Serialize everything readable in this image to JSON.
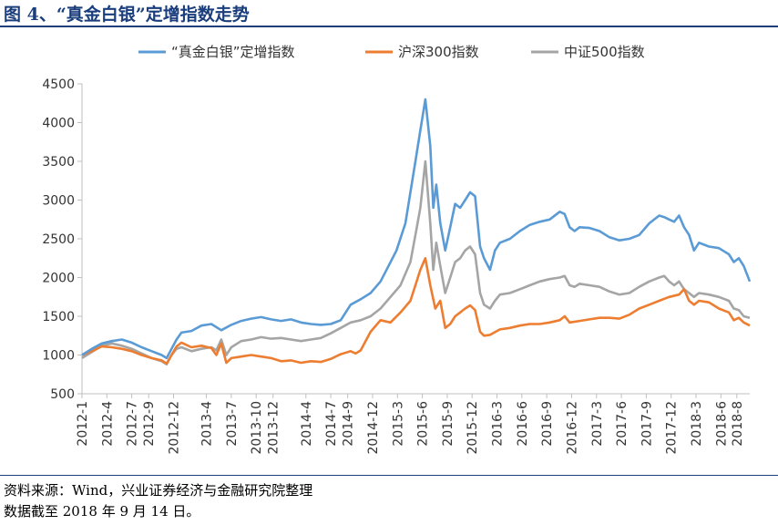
{
  "figure_title": "图 4、“真金白银”定增指数走势",
  "source_line": "资料来源：Wind，兴业证券经济与金融研究院整理",
  "date_line": "数据截至 2018 年 9 月 14 日。",
  "chart_data": {
    "type": "line",
    "title": "",
    "xlabel": "",
    "ylabel": "",
    "ylim": [
      500,
      4500
    ],
    "yticks": [
      500,
      1000,
      1500,
      2000,
      2500,
      3000,
      3500,
      4000,
      4500
    ],
    "grid": false,
    "legend_position": "top",
    "x_range": [
      2012.0,
      2018.71
    ],
    "x_tick_labels": [
      "2012-1",
      "2012-4",
      "2012-7",
      "2012-9",
      "2012-12",
      "2013-4",
      "2013-7",
      "2013-10",
      "2013-12",
      "2014-4",
      "2014-7",
      "2014-9",
      "2014-12",
      "2015-3",
      "2015-6",
      "2015-9",
      "2015-12",
      "2016-3",
      "2016-6",
      "2016-9",
      "2016-12",
      "2017-3",
      "2017-6",
      "2017-9",
      "2017-12",
      "2018-3",
      "2018-6",
      "2018-8"
    ],
    "x_tick_values": [
      2012.0,
      2012.25,
      2012.5,
      2012.67,
      2012.92,
      2013.25,
      2013.5,
      2013.75,
      2013.92,
      2014.25,
      2014.5,
      2014.67,
      2014.92,
      2015.17,
      2015.42,
      2015.67,
      2015.92,
      2016.17,
      2016.42,
      2016.67,
      2016.92,
      2017.17,
      2017.42,
      2017.67,
      2017.92,
      2018.17,
      2018.42,
      2018.58
    ],
    "series": [
      {
        "name": "“真金白银”定增指数",
        "color": "#5b9bd5",
        "points": [
          [
            2012.0,
            1000
          ],
          [
            2012.1,
            1080
          ],
          [
            2012.2,
            1150
          ],
          [
            2012.3,
            1180
          ],
          [
            2012.4,
            1200
          ],
          [
            2012.5,
            1160
          ],
          [
            2012.6,
            1100
          ],
          [
            2012.7,
            1050
          ],
          [
            2012.8,
            1000
          ],
          [
            2012.85,
            960
          ],
          [
            2012.9,
            1080
          ],
          [
            2012.95,
            1200
          ],
          [
            2013.0,
            1290
          ],
          [
            2013.1,
            1310
          ],
          [
            2013.2,
            1380
          ],
          [
            2013.3,
            1400
          ],
          [
            2013.4,
            1320
          ],
          [
            2013.5,
            1390
          ],
          [
            2013.6,
            1440
          ],
          [
            2013.7,
            1470
          ],
          [
            2013.8,
            1490
          ],
          [
            2013.9,
            1460
          ],
          [
            2014.0,
            1440
          ],
          [
            2014.1,
            1460
          ],
          [
            2014.2,
            1420
          ],
          [
            2014.3,
            1400
          ],
          [
            2014.4,
            1390
          ],
          [
            2014.5,
            1400
          ],
          [
            2014.6,
            1450
          ],
          [
            2014.7,
            1650
          ],
          [
            2014.8,
            1720
          ],
          [
            2014.9,
            1800
          ],
          [
            2015.0,
            1950
          ],
          [
            2015.08,
            2150
          ],
          [
            2015.16,
            2350
          ],
          [
            2015.25,
            2700
          ],
          [
            2015.3,
            3100
          ],
          [
            2015.35,
            3500
          ],
          [
            2015.4,
            3900
          ],
          [
            2015.45,
            4300
          ],
          [
            2015.5,
            3700
          ],
          [
            2015.53,
            2900
          ],
          [
            2015.56,
            3200
          ],
          [
            2015.6,
            2700
          ],
          [
            2015.65,
            2350
          ],
          [
            2015.7,
            2650
          ],
          [
            2015.75,
            2950
          ],
          [
            2015.8,
            2900
          ],
          [
            2015.85,
            3000
          ],
          [
            2015.9,
            3100
          ],
          [
            2015.95,
            3050
          ],
          [
            2016.0,
            2400
          ],
          [
            2016.04,
            2250
          ],
          [
            2016.1,
            2100
          ],
          [
            2016.15,
            2350
          ],
          [
            2016.2,
            2450
          ],
          [
            2016.3,
            2500
          ],
          [
            2016.4,
            2600
          ],
          [
            2016.5,
            2680
          ],
          [
            2016.6,
            2720
          ],
          [
            2016.7,
            2750
          ],
          [
            2016.8,
            2850
          ],
          [
            2016.85,
            2820
          ],
          [
            2016.9,
            2650
          ],
          [
            2016.95,
            2600
          ],
          [
            2017.0,
            2650
          ],
          [
            2017.1,
            2640
          ],
          [
            2017.2,
            2600
          ],
          [
            2017.3,
            2520
          ],
          [
            2017.4,
            2480
          ],
          [
            2017.5,
            2500
          ],
          [
            2017.6,
            2550
          ],
          [
            2017.7,
            2700
          ],
          [
            2017.8,
            2800
          ],
          [
            2017.85,
            2780
          ],
          [
            2017.9,
            2750
          ],
          [
            2017.95,
            2720
          ],
          [
            2018.0,
            2800
          ],
          [
            2018.05,
            2650
          ],
          [
            2018.1,
            2550
          ],
          [
            2018.15,
            2350
          ],
          [
            2018.2,
            2450
          ],
          [
            2018.3,
            2400
          ],
          [
            2018.4,
            2380
          ],
          [
            2018.5,
            2300
          ],
          [
            2018.55,
            2200
          ],
          [
            2018.6,
            2250
          ],
          [
            2018.65,
            2150
          ],
          [
            2018.71,
            1950
          ]
        ]
      },
      {
        "name": "沪深300指数",
        "color": "#ed7d31",
        "points": [
          [
            2012.0,
            1000
          ],
          [
            2012.1,
            1050
          ],
          [
            2012.2,
            1110
          ],
          [
            2012.3,
            1100
          ],
          [
            2012.4,
            1080
          ],
          [
            2012.5,
            1050
          ],
          [
            2012.6,
            1000
          ],
          [
            2012.7,
            960
          ],
          [
            2012.8,
            930
          ],
          [
            2012.85,
            890
          ],
          [
            2012.9,
            1000
          ],
          [
            2012.95,
            1110
          ],
          [
            2013.0,
            1160
          ],
          [
            2013.1,
            1100
          ],
          [
            2013.2,
            1120
          ],
          [
            2013.3,
            1090
          ],
          [
            2013.35,
            1000
          ],
          [
            2013.4,
            1150
          ],
          [
            2013.45,
            900
          ],
          [
            2013.5,
            960
          ],
          [
            2013.6,
            980
          ],
          [
            2013.7,
            1000
          ],
          [
            2013.8,
            980
          ],
          [
            2013.9,
            960
          ],
          [
            2014.0,
            920
          ],
          [
            2014.1,
            930
          ],
          [
            2014.2,
            900
          ],
          [
            2014.3,
            920
          ],
          [
            2014.4,
            910
          ],
          [
            2014.5,
            950
          ],
          [
            2014.6,
            1010
          ],
          [
            2014.7,
            1050
          ],
          [
            2014.75,
            1020
          ],
          [
            2014.8,
            1060
          ],
          [
            2014.9,
            1300
          ],
          [
            2015.0,
            1450
          ],
          [
            2015.1,
            1420
          ],
          [
            2015.2,
            1550
          ],
          [
            2015.3,
            1700
          ],
          [
            2015.35,
            1900
          ],
          [
            2015.4,
            2100
          ],
          [
            2015.45,
            2250
          ],
          [
            2015.5,
            1900
          ],
          [
            2015.55,
            1600
          ],
          [
            2015.6,
            1700
          ],
          [
            2015.65,
            1350
          ],
          [
            2015.7,
            1400
          ],
          [
            2015.75,
            1500
          ],
          [
            2015.8,
            1550
          ],
          [
            2015.85,
            1600
          ],
          [
            2015.9,
            1640
          ],
          [
            2015.95,
            1580
          ],
          [
            2016.0,
            1300
          ],
          [
            2016.04,
            1250
          ],
          [
            2016.1,
            1260
          ],
          [
            2016.2,
            1330
          ],
          [
            2016.3,
            1350
          ],
          [
            2016.4,
            1380
          ],
          [
            2016.5,
            1400
          ],
          [
            2016.6,
            1400
          ],
          [
            2016.7,
            1420
          ],
          [
            2016.8,
            1450
          ],
          [
            2016.85,
            1500
          ],
          [
            2016.9,
            1420
          ],
          [
            2017.0,
            1440
          ],
          [
            2017.1,
            1460
          ],
          [
            2017.2,
            1480
          ],
          [
            2017.3,
            1480
          ],
          [
            2017.4,
            1470
          ],
          [
            2017.5,
            1520
          ],
          [
            2017.6,
            1600
          ],
          [
            2017.7,
            1650
          ],
          [
            2017.8,
            1700
          ],
          [
            2017.9,
            1750
          ],
          [
            2018.0,
            1780
          ],
          [
            2018.05,
            1850
          ],
          [
            2018.1,
            1700
          ],
          [
            2018.15,
            1650
          ],
          [
            2018.2,
            1700
          ],
          [
            2018.3,
            1680
          ],
          [
            2018.4,
            1600
          ],
          [
            2018.5,
            1550
          ],
          [
            2018.55,
            1450
          ],
          [
            2018.6,
            1480
          ],
          [
            2018.65,
            1420
          ],
          [
            2018.71,
            1380
          ]
        ]
      },
      {
        "name": "中证500指数",
        "color": "#a5a5a5",
        "points": [
          [
            2012.0,
            960
          ],
          [
            2012.1,
            1040
          ],
          [
            2012.2,
            1120
          ],
          [
            2012.3,
            1150
          ],
          [
            2012.4,
            1120
          ],
          [
            2012.5,
            1080
          ],
          [
            2012.6,
            1020
          ],
          [
            2012.7,
            960
          ],
          [
            2012.8,
            920
          ],
          [
            2012.85,
            880
          ],
          [
            2012.9,
            1000
          ],
          [
            2012.95,
            1080
          ],
          [
            2013.0,
            1100
          ],
          [
            2013.1,
            1050
          ],
          [
            2013.2,
            1080
          ],
          [
            2013.3,
            1100
          ],
          [
            2013.35,
            1060
          ],
          [
            2013.4,
            1200
          ],
          [
            2013.45,
            1000
          ],
          [
            2013.5,
            1100
          ],
          [
            2013.6,
            1180
          ],
          [
            2013.7,
            1200
          ],
          [
            2013.8,
            1230
          ],
          [
            2013.9,
            1210
          ],
          [
            2014.0,
            1220
          ],
          [
            2014.1,
            1200
          ],
          [
            2014.2,
            1180
          ],
          [
            2014.3,
            1200
          ],
          [
            2014.4,
            1220
          ],
          [
            2014.5,
            1280
          ],
          [
            2014.6,
            1350
          ],
          [
            2014.7,
            1420
          ],
          [
            2014.8,
            1450
          ],
          [
            2014.9,
            1500
          ],
          [
            2015.0,
            1600
          ],
          [
            2015.1,
            1750
          ],
          [
            2015.2,
            1900
          ],
          [
            2015.3,
            2200
          ],
          [
            2015.35,
            2550
          ],
          [
            2015.4,
            2900
          ],
          [
            2015.45,
            3500
          ],
          [
            2015.5,
            2700
          ],
          [
            2015.53,
            2100
          ],
          [
            2015.56,
            2450
          ],
          [
            2015.6,
            2150
          ],
          [
            2015.65,
            1800
          ],
          [
            2015.7,
            2000
          ],
          [
            2015.75,
            2200
          ],
          [
            2015.8,
            2250
          ],
          [
            2015.85,
            2350
          ],
          [
            2015.9,
            2400
          ],
          [
            2015.95,
            2300
          ],
          [
            2016.0,
            1800
          ],
          [
            2016.04,
            1650
          ],
          [
            2016.1,
            1600
          ],
          [
            2016.15,
            1700
          ],
          [
            2016.2,
            1780
          ],
          [
            2016.3,
            1800
          ],
          [
            2016.4,
            1850
          ],
          [
            2016.5,
            1900
          ],
          [
            2016.6,
            1950
          ],
          [
            2016.7,
            1980
          ],
          [
            2016.8,
            2000
          ],
          [
            2016.85,
            2020
          ],
          [
            2016.9,
            1900
          ],
          [
            2016.95,
            1880
          ],
          [
            2017.0,
            1920
          ],
          [
            2017.1,
            1900
          ],
          [
            2017.2,
            1880
          ],
          [
            2017.3,
            1820
          ],
          [
            2017.4,
            1780
          ],
          [
            2017.5,
            1800
          ],
          [
            2017.6,
            1880
          ],
          [
            2017.7,
            1950
          ],
          [
            2017.8,
            2000
          ],
          [
            2017.85,
            2020
          ],
          [
            2017.9,
            1950
          ],
          [
            2017.95,
            1900
          ],
          [
            2018.0,
            1950
          ],
          [
            2018.05,
            1850
          ],
          [
            2018.1,
            1800
          ],
          [
            2018.15,
            1750
          ],
          [
            2018.2,
            1800
          ],
          [
            2018.3,
            1780
          ],
          [
            2018.4,
            1750
          ],
          [
            2018.5,
            1700
          ],
          [
            2018.55,
            1600
          ],
          [
            2018.6,
            1580
          ],
          [
            2018.65,
            1500
          ],
          [
            2018.71,
            1480
          ]
        ]
      }
    ]
  }
}
